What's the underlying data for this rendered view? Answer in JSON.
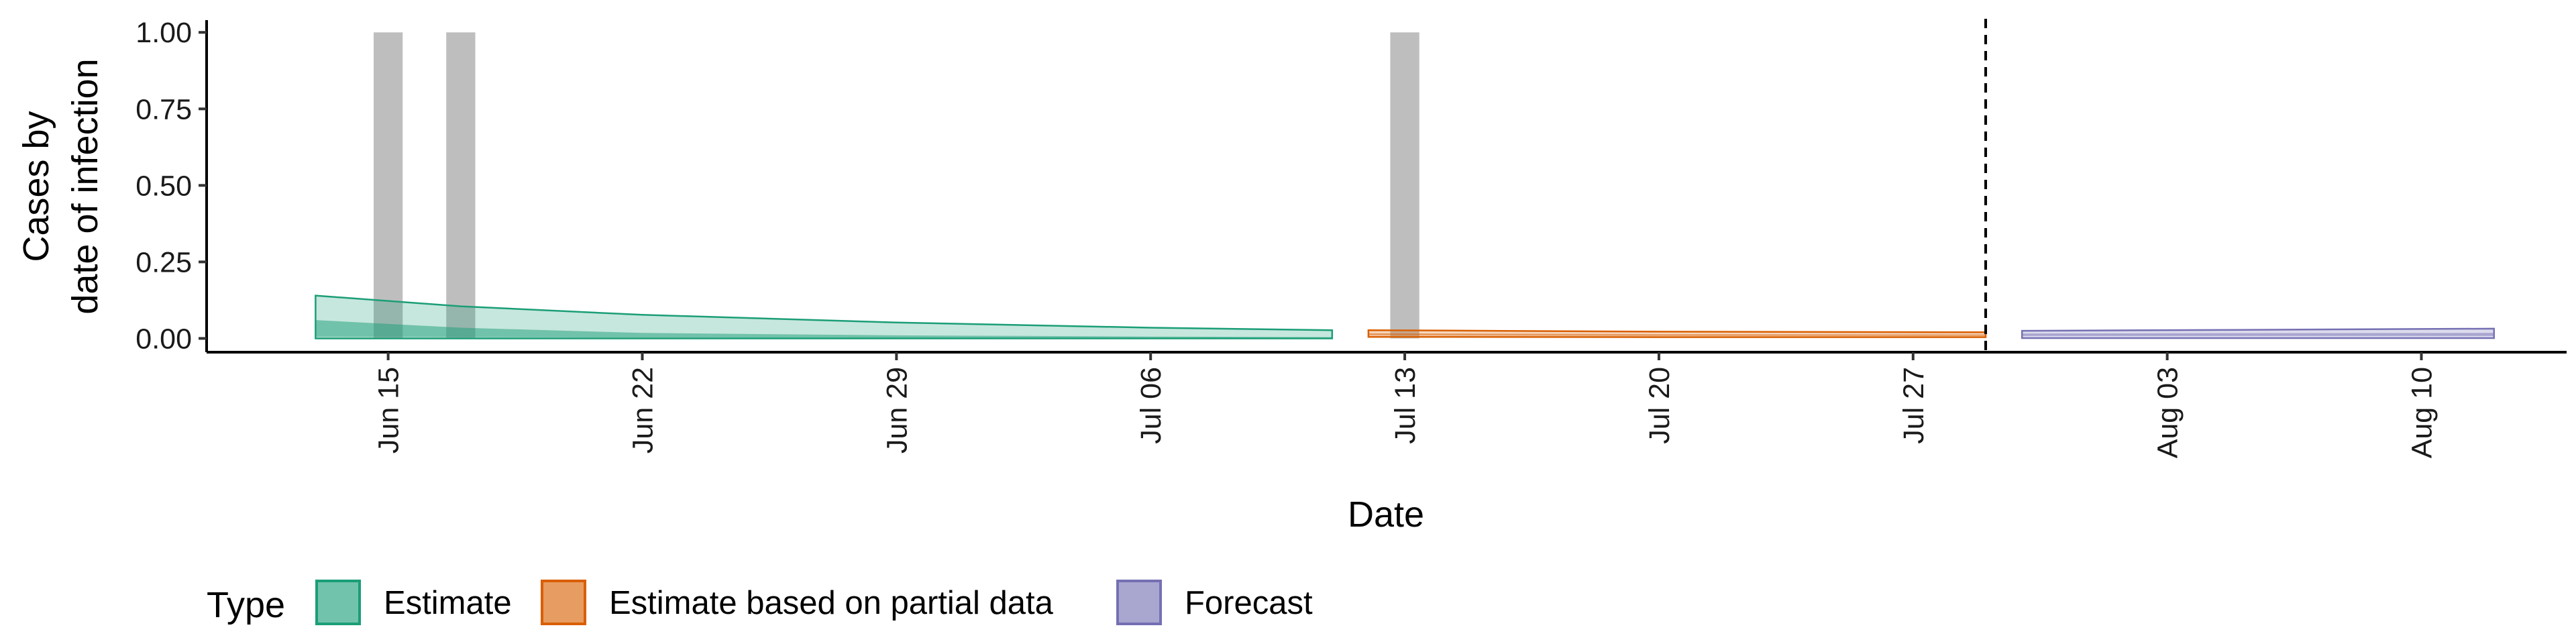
{
  "chart_data": {
    "type": "area",
    "xlabel": "Date",
    "ylabel_lines": [
      "Cases by",
      "date of infection"
    ],
    "ylim": [
      -0.045,
      1.04
    ],
    "xlim": [
      "2020-06-10",
      "2020-08-14"
    ],
    "yticks": [
      {
        "value": 0.0,
        "label": "0.00"
      },
      {
        "value": 0.25,
        "label": "0.25"
      },
      {
        "value": 0.5,
        "label": "0.50"
      },
      {
        "value": 0.75,
        "label": "0.75"
      },
      {
        "value": 1.0,
        "label": "1.00"
      }
    ],
    "xticks": [
      {
        "date": "2020-06-15",
        "label": "Jun 15"
      },
      {
        "date": "2020-06-22",
        "label": "Jun 22"
      },
      {
        "date": "2020-06-29",
        "label": "Jun 29"
      },
      {
        "date": "2020-07-06",
        "label": "Jul 06"
      },
      {
        "date": "2020-07-13",
        "label": "Jul 13"
      },
      {
        "date": "2020-07-20",
        "label": "Jul 20"
      },
      {
        "date": "2020-07-27",
        "label": "Jul 27"
      },
      {
        "date": "2020-08-03",
        "label": "Aug 03"
      },
      {
        "date": "2020-08-10",
        "label": "Aug 10"
      }
    ],
    "reported_cases": [
      {
        "date": "2020-06-15",
        "value": 1
      },
      {
        "date": "2020-06-17",
        "value": 1
      },
      {
        "date": "2020-07-13",
        "value": 1
      }
    ],
    "vline_date": "2020-07-29",
    "series": [
      {
        "name": "Estimate",
        "color": "#1b9e77",
        "outer": [
          {
            "date": "2020-06-13",
            "lower": 0.0,
            "upper": 0.14
          },
          {
            "date": "2020-06-17",
            "lower": 0.0,
            "upper": 0.105
          },
          {
            "date": "2020-06-22",
            "lower": 0.0,
            "upper": 0.077
          },
          {
            "date": "2020-06-29",
            "lower": 0.0,
            "upper": 0.052
          },
          {
            "date": "2020-07-06",
            "lower": 0.0,
            "upper": 0.035
          },
          {
            "date": "2020-07-11",
            "lower": 0.0,
            "upper": 0.027
          }
        ],
        "inner": [
          {
            "date": "2020-06-13",
            "lower": 0.005,
            "upper": 0.06
          },
          {
            "date": "2020-06-17",
            "lower": 0.004,
            "upper": 0.035
          },
          {
            "date": "2020-06-22",
            "lower": 0.003,
            "upper": 0.018
          },
          {
            "date": "2020-06-29",
            "lower": 0.002,
            "upper": 0.01
          },
          {
            "date": "2020-07-06",
            "lower": 0.001,
            "upper": 0.006
          },
          {
            "date": "2020-07-11",
            "lower": 0.001,
            "upper": 0.004
          }
        ]
      },
      {
        "name": "Estimate based on partial data",
        "color": "#d95f02",
        "outer": [
          {
            "date": "2020-07-12",
            "lower": 0.005,
            "upper": 0.027
          },
          {
            "date": "2020-07-20",
            "lower": 0.004,
            "upper": 0.022
          },
          {
            "date": "2020-07-29",
            "lower": 0.004,
            "upper": 0.02
          }
        ],
        "inner": [
          {
            "date": "2020-07-12",
            "lower": 0.01,
            "upper": 0.017
          },
          {
            "date": "2020-07-20",
            "lower": 0.008,
            "upper": 0.014
          },
          {
            "date": "2020-07-29",
            "lower": 0.008,
            "upper": 0.013
          }
        ]
      },
      {
        "name": "Forecast",
        "color": "#7570b3",
        "outer": [
          {
            "date": "2020-07-30",
            "lower": 0.001,
            "upper": 0.025
          },
          {
            "date": "2020-08-05",
            "lower": 0.001,
            "upper": 0.028
          },
          {
            "date": "2020-08-12",
            "lower": 0.001,
            "upper": 0.032
          }
        ],
        "inner": [
          {
            "date": "2020-07-30",
            "lower": 0.008,
            "upper": 0.016
          },
          {
            "date": "2020-08-05",
            "lower": 0.008,
            "upper": 0.017
          },
          {
            "date": "2020-08-12",
            "lower": 0.008,
            "upper": 0.018
          }
        ]
      }
    ],
    "legend": {
      "title": "Type",
      "position": "bottom",
      "items": [
        "Estimate",
        "Estimate based on partial data",
        "Forecast"
      ]
    },
    "grid": false
  },
  "colors": {
    "reported_bar": "#bebebe",
    "estimate": "#1b9e77",
    "partial": "#d95f02",
    "forecast": "#7570b3"
  }
}
